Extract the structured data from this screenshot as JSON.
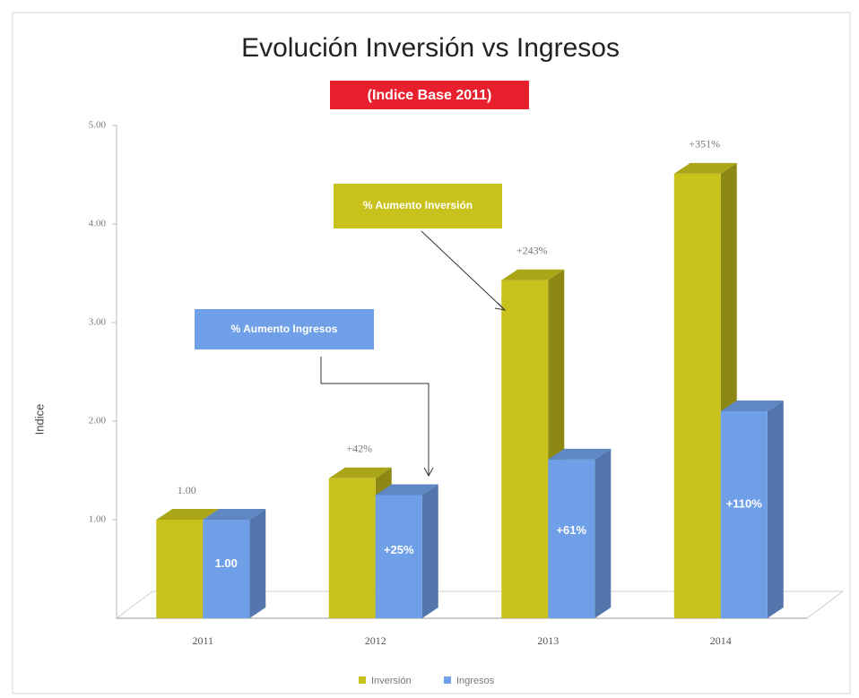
{
  "chart_data": {
    "type": "bar3d",
    "title": "Evolución Inversión vs Ingresos",
    "subtitle": "(Indice Base 2011)",
    "y_label": "Indice",
    "categories": [
      "2011",
      "2012",
      "2013",
      "2014"
    ],
    "series": [
      {
        "name": "Inversión",
        "color": "#c9c21c",
        "values": [
          1.0,
          1.42,
          3.43,
          4.51
        ],
        "value_labels": [
          "1.00",
          "+42%",
          "+243%",
          "+351%"
        ]
      },
      {
        "name": "Ingresos",
        "color": "#6f9fe6",
        "values": [
          1.0,
          1.25,
          1.61,
          2.1
        ],
        "value_labels": [
          "1.00",
          "+25%",
          "+61%",
          "+110%"
        ]
      }
    ],
    "ylim": [
      0,
      5
    ],
    "yticks": [
      {
        "value": 1,
        "label": "1.00"
      },
      {
        "value": 2,
        "label": "2.00"
      },
      {
        "value": 3,
        "label": "3.00"
      },
      {
        "value": 4,
        "label": "4.00"
      },
      {
        "value": 5,
        "label": "5.00"
      }
    ],
    "annotations": [
      "% Aumento Inversión",
      "% Aumento Ingresos"
    ],
    "legend": "bottom"
  }
}
